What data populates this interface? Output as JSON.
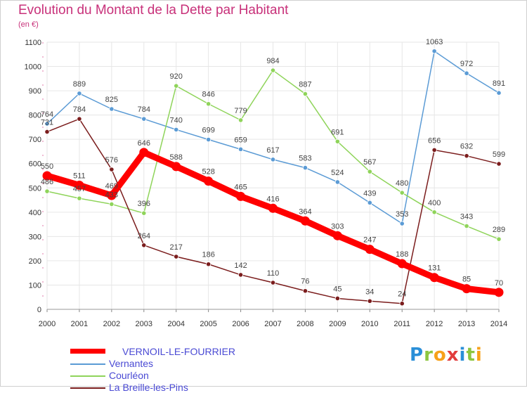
{
  "title": "Evolution du Montant de la Dette par Habitant",
  "subtitle": "(en €)",
  "logo": {
    "text": "Proxiti",
    "colors": [
      "#2a8fd8",
      "#8cc63f",
      "#f7a11a",
      "#e23d3d",
      "#2a8fd8",
      "#8cc63f",
      "#f7a11a"
    ]
  },
  "chart_data": {
    "type": "line",
    "x": [
      "2000",
      "2001",
      "2002",
      "2003",
      "2004",
      "2005",
      "2006",
      "2007",
      "2008",
      "2009",
      "2010",
      "2011",
      "2012",
      "2013",
      "2014"
    ],
    "yticks": [
      "0",
      "100",
      "200",
      "300",
      "400",
      "500",
      "600",
      "700",
      "800",
      "900",
      "1000",
      "1100"
    ],
    "ylim": [
      0,
      1100
    ],
    "grid": true,
    "legend_position": "bottom-left",
    "series": [
      {
        "name": "Vernantes",
        "color": "#5b9bd5",
        "values": [
          764,
          889,
          825,
          784,
          740,
          699,
          659,
          617,
          583,
          524,
          439,
          353,
          1063,
          972,
          891
        ],
        "labels": [
          "764",
          "889",
          "825",
          "784",
          "740",
          "699",
          "659",
          "617",
          "583",
          "524",
          "439",
          "353",
          "1063",
          "972",
          "891"
        ]
      },
      {
        "name": "Courléon",
        "color": "#8fd45a",
        "values": [
          486,
          457,
          433,
          396,
          920,
          846,
          779,
          984,
          887,
          691,
          567,
          480,
          400,
          343,
          289
        ],
        "labels": [
          "486",
          "457",
          "433",
          "396",
          "920",
          "846",
          "779",
          "984",
          "887",
          "691",
          "567",
          "480",
          "400",
          "343",
          "289"
        ]
      },
      {
        "name": "La Breille-les-Pins",
        "color": "#7b1d1d",
        "values": [
          731,
          784,
          576,
          264,
          217,
          186,
          142,
          110,
          76,
          45,
          34,
          24,
          656,
          632,
          599
        ],
        "labels": [
          "731",
          "784",
          "576",
          "264",
          "217",
          "186",
          "142",
          "110",
          "76",
          "45",
          "34",
          "24",
          "656",
          "632",
          "599"
        ]
      },
      {
        "name": "VERNOIL-LE-FOURRIER",
        "color": "#ff0000",
        "values": [
          550,
          511,
          469,
          646,
          588,
          528,
          465,
          416,
          364,
          303,
          247,
          188,
          131,
          85,
          70
        ],
        "labels": [
          "550",
          "511",
          "469",
          "646",
          "588",
          "528",
          "465",
          "416",
          "364",
          "303",
          "247",
          "188",
          "131",
          "85",
          "70"
        ]
      }
    ]
  },
  "legend": [
    {
      "name": "VERNOIL-LE-FOURRIER",
      "color": "#ff0000"
    },
    {
      "name": "Vernantes",
      "color": "#5b9bd5"
    },
    {
      "name": "Courléon",
      "color": "#8fd45a"
    },
    {
      "name": "La Breille-les-Pins",
      "color": "#7b1d1d"
    }
  ]
}
